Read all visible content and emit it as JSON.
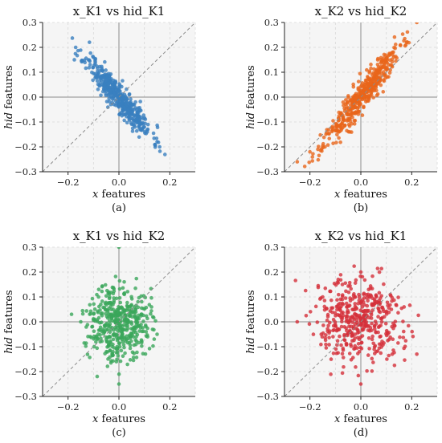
{
  "figure": {
    "panels": [
      {
        "caption": "(a)",
        "title": "x_K1 vs hid_K1",
        "xlabel_italic": "x",
        "xlabel_rest": " features",
        "ylabel_italic": "hid",
        "ylabel_rest": " features"
      },
      {
        "caption": "(b)",
        "title": "x_K2 vs hid_K2",
        "xlabel_italic": "x",
        "xlabel_rest": " features",
        "ylabel_italic": "hid",
        "ylabel_rest": " features"
      },
      {
        "caption": "(c)",
        "title": "x_K1 vs hid_K2",
        "xlabel_italic": "x",
        "xlabel_rest": " features",
        "ylabel_italic": "hid",
        "ylabel_rest": " features"
      },
      {
        "caption": "(d)",
        "title": "x_K2 vs hid_K1",
        "xlabel_italic": "x",
        "xlabel_rest": " features",
        "ylabel_italic": "hid",
        "ylabel_rest": " features"
      }
    ]
  },
  "chart_data": [
    {
      "type": "scatter",
      "title": "x_K1 vs hid_K1",
      "xlabel": "x features",
      "ylabel": "hid features",
      "xlim": [
        -0.3,
        0.3
      ],
      "ylim": [
        -0.3,
        0.3
      ],
      "xticks": [
        "−0.2",
        "0.0",
        "0.2"
      ],
      "yticks": [
        "0.3",
        "0.2",
        "0.1",
        "0.0",
        "−0.1",
        "−0.2",
        "−0.3"
      ],
      "color": "#3a7fbf",
      "grid": true,
      "reference_line": "y = x",
      "trend": "strong negative correlation, approximately y = -1.15x",
      "n_points": 450,
      "sample_points": [
        [
          -0.17,
          0.2
        ],
        [
          -0.12,
          0.15
        ],
        [
          -0.06,
          0.08
        ],
        [
          0.0,
          0.0
        ],
        [
          0.05,
          -0.06
        ],
        [
          0.1,
          -0.12
        ],
        [
          0.15,
          -0.18
        ],
        [
          0.16,
          -0.2
        ]
      ]
    },
    {
      "type": "scatter",
      "title": "x_K2 vs hid_K2",
      "xlabel": "x features",
      "ylabel": "hid features",
      "xlim": [
        -0.3,
        0.3
      ],
      "ylim": [
        -0.3,
        0.3
      ],
      "xticks": [
        "−0.2",
        "0.0",
        "0.2"
      ],
      "yticks": [
        "0.3",
        "0.2",
        "0.1",
        "0.0",
        "−0.1",
        "−0.2",
        "−0.3"
      ],
      "color": "#e8651a",
      "grid": true,
      "reference_line": "y = x",
      "trend": "strong positive correlation, approximately y = 1.25x",
      "n_points": 450,
      "sample_points": [
        [
          -0.25,
          -0.26
        ],
        [
          -0.2,
          -0.22
        ],
        [
          -0.1,
          -0.12
        ],
        [
          0.0,
          0.0
        ],
        [
          0.1,
          0.12
        ],
        [
          0.18,
          0.22
        ],
        [
          0.22,
          0.3
        ]
      ]
    },
    {
      "type": "scatter",
      "title": "x_K1 vs hid_K2",
      "xlabel": "x features",
      "ylabel": "hid features",
      "xlim": [
        -0.3,
        0.3
      ],
      "ylim": [
        -0.3,
        0.3
      ],
      "xticks": [
        "−0.2",
        "0.0",
        "0.2"
      ],
      "yticks": [
        "0.3",
        "0.2",
        "0.1",
        "0.0",
        "−0.1",
        "−0.2",
        "−0.3"
      ],
      "color": "#3aa65a",
      "grid": true,
      "reference_line": "y = x",
      "trend": "no correlation, roughly isotropic cloud centered at origin",
      "n_points": 450,
      "sample_points": [
        [
          -0.15,
          0.0
        ],
        [
          -0.08,
          0.1
        ],
        [
          0.0,
          0.3
        ],
        [
          0.0,
          -0.25
        ],
        [
          0.05,
          0.05
        ],
        [
          0.15,
          -0.05
        ]
      ]
    },
    {
      "type": "scatter",
      "title": "x_K2 vs hid_K1",
      "xlabel": "x features",
      "ylabel": "hid features",
      "xlim": [
        -0.3,
        0.3
      ],
      "ylim": [
        -0.3,
        0.3
      ],
      "xticks": [
        "−0.2",
        "0.0",
        "0.2"
      ],
      "yticks": [
        "0.3",
        "0.2",
        "0.1",
        "0.0",
        "−0.1",
        "−0.2",
        "−0.3"
      ],
      "color": "#d4303a",
      "grid": true,
      "reference_line": "y = x",
      "trend": "no correlation, wide cloud centered at origin",
      "n_points": 450,
      "sample_points": [
        [
          -0.25,
          0.0
        ],
        [
          -0.15,
          0.1
        ],
        [
          0.0,
          0.2
        ],
        [
          0.0,
          -0.25
        ],
        [
          0.12,
          0.05
        ],
        [
          0.22,
          -0.13
        ]
      ]
    }
  ]
}
